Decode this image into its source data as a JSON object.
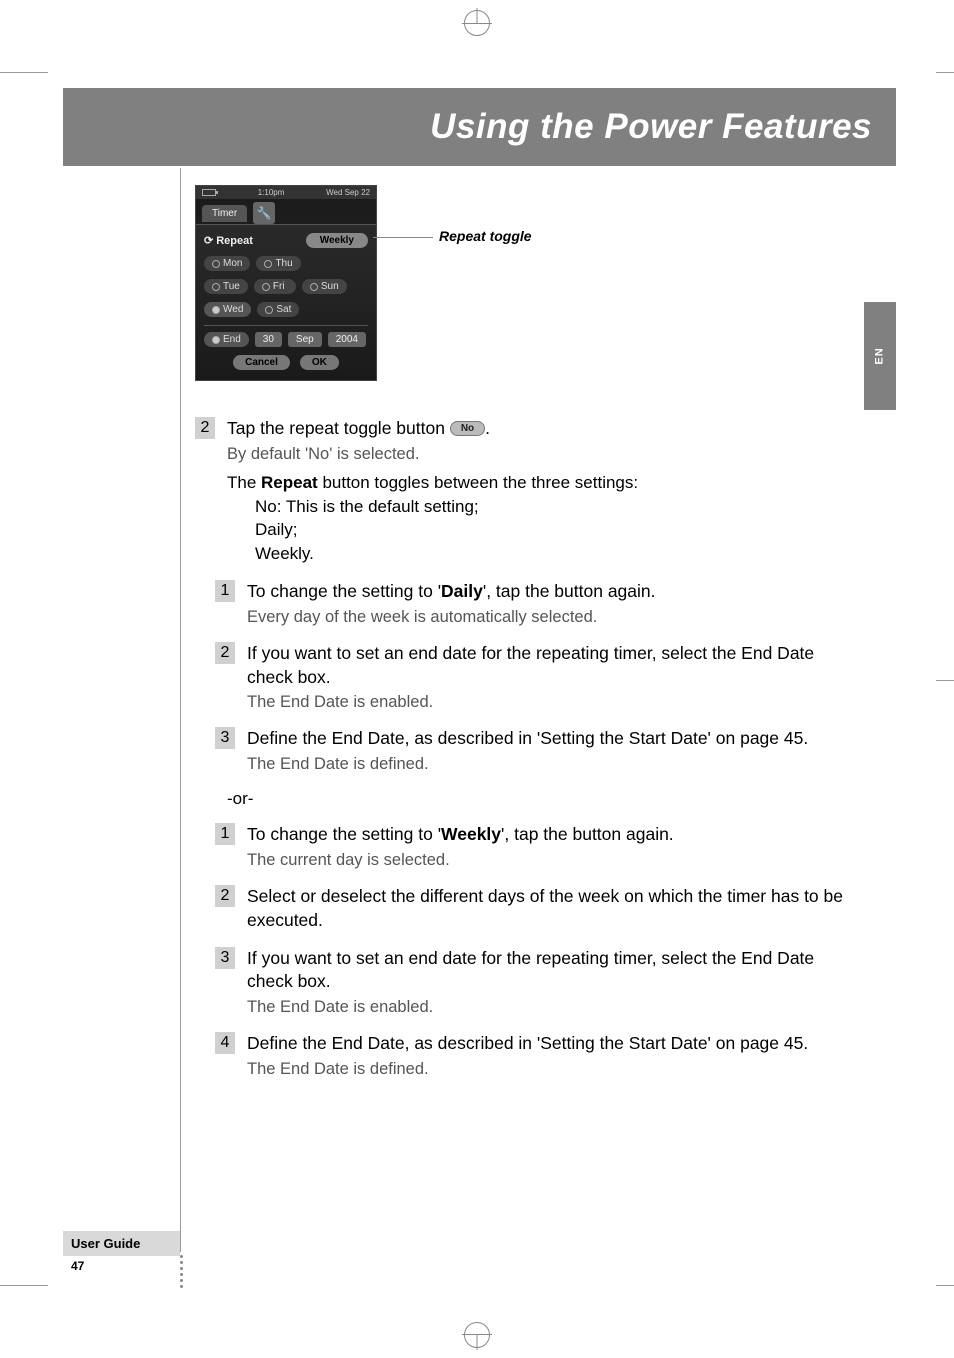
{
  "header": {
    "title": "Using the Power Features"
  },
  "side_tab": "EN",
  "device_screenshot": {
    "status": {
      "time": "1:10pm",
      "date": "Wed Sep 22"
    },
    "tab": "Timer",
    "repeat_label": "Repeat",
    "toggle_value": "Weekly",
    "days_row1": [
      "Mon",
      "Thu"
    ],
    "days_row2": [
      "Tue",
      "Fri",
      "Sun"
    ],
    "days_row3": [
      "Wed",
      "Sat"
    ],
    "end_row": {
      "label": "End",
      "day": "30",
      "month": "Sep",
      "year": "2004"
    },
    "buttons": {
      "cancel": "Cancel",
      "ok": "OK"
    }
  },
  "callout": "Repeat toggle",
  "step2": {
    "num": "2",
    "line1_pre": "Tap the repeat toggle button ",
    "pill": "No",
    "line1_post": ".",
    "line2": "By default 'No' is selected."
  },
  "explain": {
    "line1_pre": "The ",
    "line1_bold": "Repeat",
    "line1_post": " button toggles between the three settings:",
    "opt1": "No: This is the default setting;",
    "opt2": "Daily;",
    "opt3": "Weekly."
  },
  "daily": {
    "s1": {
      "num": "1",
      "pre": "To change the setting to '",
      "bold": "Daily",
      "post": "', tap the button again.",
      "sub": "Every day of the week is automatically selected."
    },
    "s2": {
      "num": "2",
      "line": "If you want to set an end date for the repeating timer, select the End Date check box.",
      "sub": "The End Date is enabled."
    },
    "s3": {
      "num": "3",
      "line": "Define the End Date, as described in 'Setting the Start Date' on page 45.",
      "sub": "The End Date is defined."
    }
  },
  "or": "-or-",
  "weekly": {
    "s1": {
      "num": "1",
      "pre": "To change the setting to '",
      "bold": "Weekly",
      "post": "', tap the button again.",
      "sub": "The current day is selected."
    },
    "s2": {
      "num": "2",
      "line": "Select or deselect the different days of the week on which the timer has to be executed."
    },
    "s3": {
      "num": "3",
      "line": "If you want to set an end date for the repeating timer, select the End Date check box.",
      "sub": "The End Date is enabled."
    },
    "s4": {
      "num": "4",
      "line": "Define the End Date, as described in 'Setting the Start Date' on page 45.",
      "sub": "The End Date is defined."
    }
  },
  "footer": {
    "label": "User Guide",
    "page": "47"
  }
}
